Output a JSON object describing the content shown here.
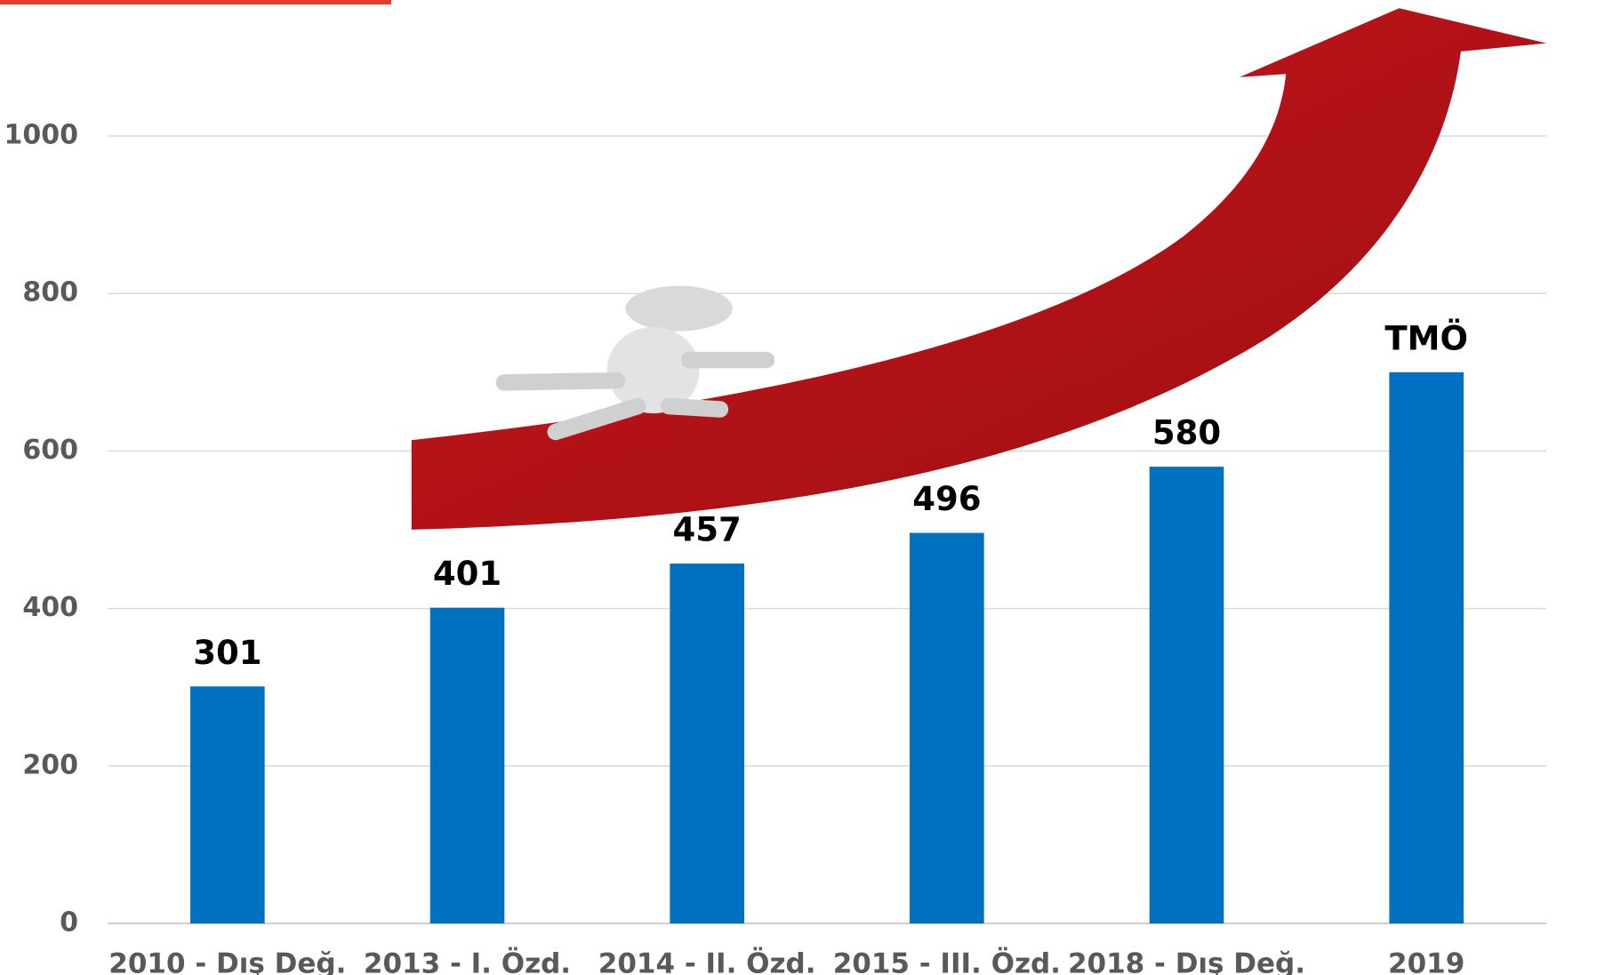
{
  "chart_data": {
    "type": "bar",
    "categories": [
      "2010 - Dış Değ.",
      "2013 - I. Özd.",
      "2014 - II. Özd.",
      "2015 - III. Özd.",
      "2018 - Dış Değ.",
      "2019"
    ],
    "values": [
      301,
      401,
      457,
      496,
      580,
      700
    ],
    "value_labels": [
      "301",
      "401",
      "457",
      "496",
      "580",
      "TMÖ"
    ],
    "color": "#0070c0",
    "ylim": [
      0,
      1000
    ],
    "yticks": [
      0,
      200,
      400,
      600,
      800,
      1000
    ],
    "grid": true
  }
}
